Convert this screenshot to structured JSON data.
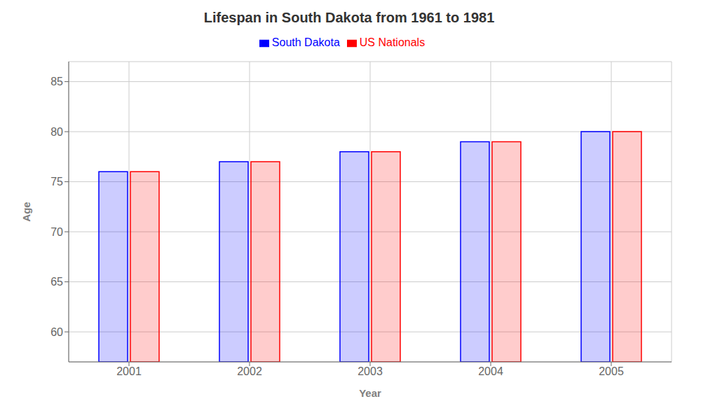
{
  "chart_data": {
    "type": "bar",
    "title": "Lifespan in South Dakota from 1961 to 1981",
    "x_label": "Year",
    "y_label": "Age",
    "categories": [
      "2001",
      "2002",
      "2003",
      "2004",
      "2005"
    ],
    "series": [
      {
        "name": "South Dakota",
        "color": "#0000ff",
        "values": [
          76,
          77,
          78,
          79,
          80
        ]
      },
      {
        "name": "US Nationals",
        "color": "#ff0000",
        "values": [
          76,
          77,
          78,
          79,
          80
        ]
      }
    ],
    "ylim": [
      57,
      87
    ],
    "yticks": [
      60,
      65,
      70,
      75,
      80,
      85
    ],
    "grid": true,
    "legend": "top"
  }
}
